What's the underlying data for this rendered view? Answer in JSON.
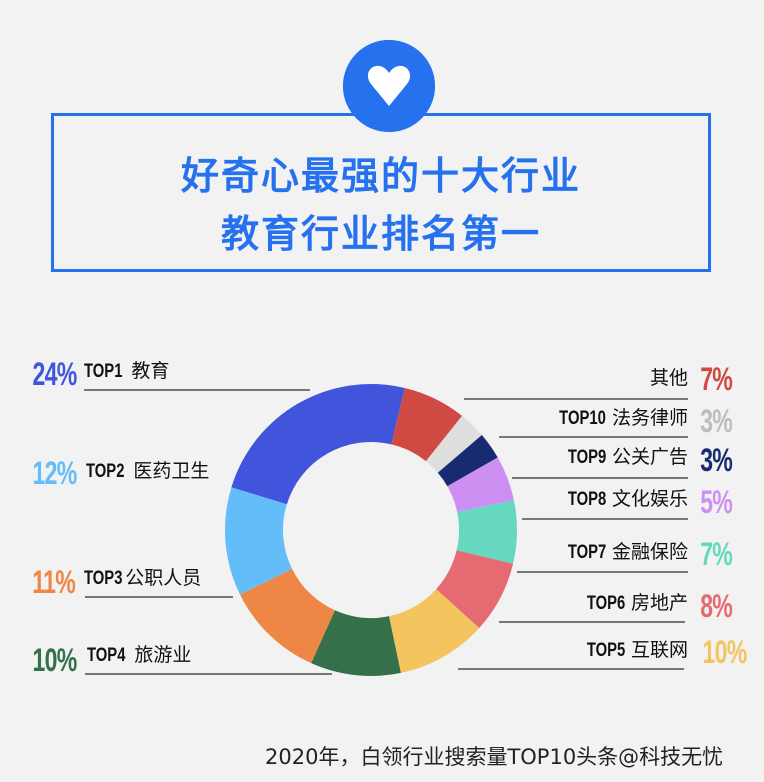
{
  "header": {
    "icon": "heart-icon",
    "title_line1": "好奇心最强的十大行业",
    "title_line2": "教育行业排名第一",
    "accent": "#2672ee"
  },
  "legend": {
    "left": [
      {
        "rank": "TOP1",
        "name": "教育",
        "pct": "24%",
        "color": "#4154dc"
      },
      {
        "rank": "TOP2",
        "name": "医药卫生",
        "pct": "12%",
        "color": "#62bdf8"
      },
      {
        "rank": "TOP3",
        "name": "公职人员",
        "pct": "11%",
        "color": "#ee8645"
      },
      {
        "rank": "TOP4",
        "name": "旅游业",
        "pct": "10%",
        "color": "#35704b"
      }
    ],
    "right": [
      {
        "rank": "",
        "name": "其他",
        "pct": "7%",
        "color": "#d04a44"
      },
      {
        "rank": "TOP10",
        "name": "法务律师",
        "pct": "3%",
        "color": "#bdbdbd"
      },
      {
        "rank": "TOP9",
        "name": "公关广告",
        "pct": "3%",
        "color": "#182a72"
      },
      {
        "rank": "TOP8",
        "name": "文化娱乐",
        "pct": "5%",
        "color": "#cd90f2"
      },
      {
        "rank": "TOP7",
        "name": "金融保险",
        "pct": "7%",
        "color": "#67d8c0"
      },
      {
        "rank": "TOP6",
        "name": "房地产",
        "pct": "8%",
        "color": "#e66a71"
      },
      {
        "rank": "TOP5",
        "name": "互联网",
        "pct": "10%",
        "color": "#f4c45f"
      }
    ]
  },
  "caption": "2020年，白领行业搜索量TOP10头条@科技无忧",
  "chart_data": {
    "type": "pie",
    "variant": "donut",
    "title": "好奇心最强的十大行业 教育行业排名第一",
    "subtitle": "2020年，白领行业搜索量TOP10",
    "categories": [
      "教育",
      "医药卫生",
      "公职人员",
      "旅游业",
      "互联网",
      "房地产",
      "金融保险",
      "文化娱乐",
      "公关广告",
      "法务律师",
      "其他"
    ],
    "values": [
      24,
      12,
      11,
      10,
      10,
      8,
      7,
      5,
      3,
      3,
      7
    ],
    "colors": [
      "#4154dc",
      "#62bdf8",
      "#ee8645",
      "#35704b",
      "#f4c45f",
      "#e66a71",
      "#67d8c0",
      "#cd90f2",
      "#182a72",
      "#dedede",
      "#d04a44"
    ],
    "unit": "%",
    "legend_position": "both-sides"
  }
}
